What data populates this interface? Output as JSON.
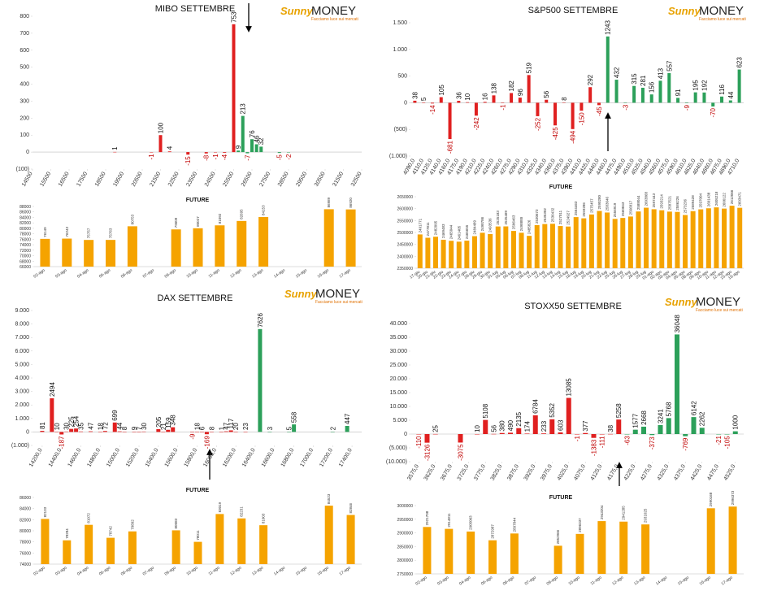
{
  "logo": {
    "brand1": "Sunny",
    "brand2": "MONEY",
    "tagline": "Facciamo luce sui mercati"
  },
  "chart_data": [
    {
      "type": "bar",
      "title": "MIBO SETTEMBRE",
      "x": [
        19000,
        21000,
        21500,
        22000,
        23000,
        24000,
        24500,
        25000,
        25500,
        25750,
        26000,
        26250,
        26500,
        26750,
        27000,
        28000,
        28500
      ],
      "values": [
        1,
        -1,
        100,
        4,
        -15,
        -8,
        -1,
        -4,
        753,
        9,
        213,
        -7,
        76,
        46,
        32,
        -5,
        -2
      ],
      "colors": [
        "#e02020",
        "#e02020",
        "#e02020",
        "#e02020",
        "#e02020",
        "#e02020",
        "#e02020",
        "#e02020",
        "#e02020",
        "#2ca05a",
        "#2ca05a",
        "#2ca05a",
        "#2ca05a",
        "#2ca05a",
        "#2ca05a",
        "#2ca05a",
        "#2ca05a"
      ],
      "xlim": [
        14500,
        32500
      ],
      "xticks": [
        14500,
        15500,
        16500,
        17500,
        18500,
        19500,
        20500,
        21500,
        22500,
        23500,
        24500,
        25500,
        26500,
        27500,
        28500,
        29500,
        30500,
        31500,
        32500
      ],
      "ylim": [
        -100,
        800
      ],
      "yticks": [
        {
          "value": -100,
          "label": "(100)"
        },
        0,
        100,
        200,
        300,
        400,
        500,
        600,
        700,
        800
      ]
    },
    {
      "type": "bar",
      "title": "FUTURE",
      "categories": [
        "02-ago",
        "03-ago",
        "04-ago",
        "05-ago",
        "06-ago",
        "07-ago",
        "09-ago",
        "10-ago",
        "11-ago",
        "12-ago",
        "13-ago",
        "14-ago",
        "15-ago",
        "16-ago",
        "17-ago"
      ],
      "values": [
        76149,
        76243,
        75757,
        75763,
        80753,
        null,
        79609,
        80027,
        81092,
        82695,
        84153,
        null,
        null,
        86989,
        86920
      ],
      "color": "#f5a300",
      "ylim": [
        66000,
        88000
      ],
      "yticks": [
        66000,
        68000,
        70000,
        72000,
        74000,
        76000,
        78000,
        80000,
        82000,
        84000,
        86000,
        88000
      ]
    },
    {
      "type": "bar",
      "title": "S&P500 SETTEMBRE",
      "categories": [
        "4090,0",
        "4110,0",
        "4125,0",
        "4140,0",
        "4160,0",
        "4175,0",
        "4190,0",
        "4210,0",
        "4225,0",
        "4240,0",
        "4260,0",
        "4275,0",
        "4290,0",
        "4310,0",
        "4325,0",
        "4340,0",
        "4360,0",
        "4375,0",
        "4390,0",
        "4410,0",
        "4425,0",
        "4440,0",
        "4460,0",
        "4475,0",
        "4490,0",
        "4510,0",
        "4525,0",
        "4540,0",
        "4560,0",
        "4575,0",
        "4590,0",
        "4610,0",
        "4625,0",
        "4640,0",
        "4660,0",
        "4675,0",
        "4690,0",
        "4710,0"
      ],
      "values": [
        38,
        5,
        -14,
        105,
        -681,
        36,
        10,
        -242,
        16,
        138,
        -1,
        182,
        96,
        519,
        -252,
        56,
        -425,
        8,
        -494,
        -150,
        292,
        -45,
        1243,
        432,
        -3,
        315,
        281,
        156,
        413,
        557,
        91,
        -9,
        195,
        192,
        -70,
        116,
        44,
        623
      ],
      "colors": [
        "#e02020",
        "#e02020",
        "#e02020",
        "#e02020",
        "#e02020",
        "#e02020",
        "#e02020",
        "#e02020",
        "#e02020",
        "#e02020",
        "#e02020",
        "#e02020",
        "#e02020",
        "#e02020",
        "#e02020",
        "#e02020",
        "#e02020",
        "#e02020",
        "#e02020",
        "#e02020",
        "#e02020",
        "#e02020",
        "#2ca05a",
        "#2ca05a",
        "#2ca05a",
        "#2ca05a",
        "#2ca05a",
        "#2ca05a",
        "#2ca05a",
        "#2ca05a",
        "#2ca05a",
        "#2ca05a",
        "#2ca05a",
        "#2ca05a",
        "#2ca05a",
        "#2ca05a",
        "#2ca05a",
        "#2ca05a"
      ],
      "ylim": [
        -1000,
        1500
      ],
      "yticks": [
        {
          "value": -1000,
          "label": "(1.000)"
        },
        {
          "value": -500,
          "label": "(500)"
        },
        0,
        500,
        {
          "value": 1000,
          "label": "1.000"
        },
        {
          "value": 1500,
          "label": "1.500"
        }
      ]
    },
    {
      "type": "bar",
      "title": "FUTURE",
      "categories": [
        "17-giu",
        "20-giu",
        "21-giu",
        "22-giu",
        "23-giu",
        "24-giu",
        "27-giu",
        "28-giu",
        "29-giu",
        "30-giu",
        "01-lug",
        "05-lug",
        "06-lug",
        "07-lug",
        "08-lug",
        "11-lug",
        "12-lug",
        "13-lug",
        "14-lug",
        "15-lug",
        "18-lug",
        "19-lug",
        "20-lug",
        "21-lug",
        "22-lug",
        "25-lug",
        "26-lug",
        "27-lug",
        "28-lug",
        "29-lug",
        "01-ago",
        "02-ago",
        "03-ago",
        "04-ago",
        "05-ago",
        "08-ago",
        "09-ago",
        "10-ago",
        "11-ago",
        "12-ago",
        "15-ago",
        "16-ago"
      ],
      "values": [
        2491771,
        2477811,
        2482095,
        2469483,
        2465044,
        2461405,
        2465655,
        2484489,
        2498786,
        2493536,
        2525183,
        2525489,
        2506463,
        2498800,
        2485826,
        2530673,
        2535302,
        2536432,
        2527011,
        2524927,
        2564463,
        2559286,
        2575457,
        2590280,
        2583646,
        2556919,
        2560843,
        2566817,
        2588044,
        2603868,
        2597443,
        2593214,
        2587521,
        2586226,
        2573236,
        2589428,
        2597004,
        2601438,
        2605218,
        2600122,
        2612066,
        2603471
      ],
      "color": "#f5a300",
      "ylim": [
        2350000,
        2650000
      ],
      "yticks": [
        2350000,
        2400000,
        2450000,
        2500000,
        2550000,
        2600000,
        2650000
      ]
    },
    {
      "type": "bar",
      "title": "DAX SETTEMBRE",
      "x": [
        14200,
        14300,
        14350,
        14400,
        14450,
        14500,
        14550,
        14600,
        14700,
        14800,
        14850,
        14950,
        15000,
        15050,
        15150,
        15200,
        15250,
        15400,
        15450,
        15500,
        15550,
        15750,
        15800,
        15850,
        15900,
        15950,
        16050,
        16100,
        16150,
        16200,
        16300,
        16450,
        16550,
        16750,
        16800,
        17200,
        17350
      ],
      "values": [
        81,
        2494,
        10,
        -187,
        30,
        225,
        254,
        35,
        47,
        18,
        72,
        699,
        44,
        8,
        9,
        7,
        30,
        205,
        21,
        159,
        348,
        -9,
        18,
        6,
        -169,
        8,
        1,
        47,
        117,
        20,
        23,
        7626,
        3,
        5,
        558,
        2,
        447
      ],
      "colors": [
        "#e02020",
        "#e02020",
        "#e02020",
        "#e02020",
        "#e02020",
        "#e02020",
        "#e02020",
        "#e02020",
        "#e02020",
        "#e02020",
        "#e02020",
        "#e02020",
        "#e02020",
        "#e02020",
        "#e02020",
        "#e02020",
        "#e02020",
        "#e02020",
        "#e02020",
        "#e02020",
        "#e02020",
        "#e02020",
        "#e02020",
        "#e02020",
        "#e02020",
        "#e02020",
        "#e02020",
        "#e02020",
        "#e02020",
        "#e02020",
        "#e02020",
        "#2ca05a",
        "#2ca05a",
        "#2ca05a",
        "#2ca05a",
        "#2ca05a",
        "#2ca05a"
      ],
      "xlim": [
        14100,
        17500
      ],
      "xticks": [
        {
          "value": 14200,
          "label": "14200,0"
        },
        {
          "value": 14400,
          "label": "14400,0"
        },
        {
          "value": 14600,
          "label": "14600,0"
        },
        {
          "value": 14800,
          "label": "14800,0"
        },
        {
          "value": 15000,
          "label": "15000,0"
        },
        {
          "value": 15200,
          "label": "15200,0"
        },
        {
          "value": 15400,
          "label": "15400,0"
        },
        {
          "value": 15600,
          "label": "15600,0"
        },
        {
          "value": 15800,
          "label": "15800,0"
        },
        {
          "value": 16000,
          "label": "16000,0"
        },
        {
          "value": 16200,
          "label": "16200,0"
        },
        {
          "value": 16400,
          "label": "16400,0"
        },
        {
          "value": 16600,
          "label": "16600,0"
        },
        {
          "value": 16800,
          "label": "16800,0"
        },
        {
          "value": 17000,
          "label": "17000,0"
        },
        {
          "value": 17200,
          "label": "17200,0"
        },
        {
          "value": 17400,
          "label": "17400,0"
        }
      ],
      "ylim": [
        -1000,
        9000
      ],
      "yticks": [
        {
          "value": -1000,
          "label": "(1.000)"
        },
        0,
        {
          "value": 1000,
          "label": "1.000"
        },
        {
          "value": 2000,
          "label": "2.000"
        },
        {
          "value": 3000,
          "label": "3.000"
        },
        {
          "value": 4000,
          "label": "4.000"
        },
        {
          "value": 5000,
          "label": "5.000"
        },
        {
          "value": 6000,
          "label": "6.000"
        },
        {
          "value": 7000,
          "label": "7.000"
        },
        {
          "value": 8000,
          "label": "8.000"
        },
        {
          "value": 9000,
          "label": "9.000"
        }
      ]
    },
    {
      "type": "bar",
      "title": "FUTURE",
      "categories": [
        "02-ago",
        "03-ago",
        "04-ago",
        "05-ago",
        "06-ago",
        "07-ago",
        "09-ago",
        "10-ago",
        "11-ago",
        "12-ago",
        "13-ago",
        "14-ago",
        "15-ago",
        "16-ago",
        "17-ago"
      ],
      "values": [
        82133,
        78284,
        81072,
        78742,
        79892,
        null,
        80083,
        78011,
        83019,
        82231,
        81003,
        null,
        null,
        84523,
        82846
      ],
      "color": "#f5a300",
      "ylim": [
        74000,
        86000
      ],
      "yticks": [
        74000,
        76000,
        78000,
        80000,
        82000,
        84000,
        86000
      ]
    },
    {
      "type": "bar",
      "title": "STOXX50 SETTEMBRE",
      "x": [
        3575,
        3600,
        3625,
        3700,
        3750,
        3775,
        3800,
        3825,
        3850,
        3875,
        3900,
        3925,
        3950,
        3975,
        4000,
        4025,
        4050,
        4075,
        4100,
        4125,
        4150,
        4175,
        4200,
        4225,
        4250,
        4275,
        4300,
        4325,
        4350,
        4375,
        4400,
        4425,
        4475,
        4500,
        4525
      ],
      "values": [
        -110,
        -3126,
        25,
        -3075,
        10,
        5108,
        56,
        380,
        490,
        2135,
        174,
        6784,
        233,
        5352,
        603,
        13085,
        -1,
        377,
        -1383,
        -111,
        38,
        5258,
        -63,
        1577,
        2668,
        -373,
        3241,
        5768,
        36048,
        -769,
        6142,
        2262,
        -21,
        -105,
        1000
      ],
      "colors": [
        "#e02020",
        "#e02020",
        "#e02020",
        "#e02020",
        "#e02020",
        "#e02020",
        "#e02020",
        "#e02020",
        "#e02020",
        "#e02020",
        "#e02020",
        "#e02020",
        "#e02020",
        "#e02020",
        "#e02020",
        "#e02020",
        "#e02020",
        "#e02020",
        "#e02020",
        "#e02020",
        "#e02020",
        "#e02020",
        "#2ca05a",
        "#2ca05a",
        "#2ca05a",
        "#2ca05a",
        "#2ca05a",
        "#2ca05a",
        "#2ca05a",
        "#2ca05a",
        "#2ca05a",
        "#2ca05a",
        "#2ca05a",
        "#2ca05a",
        "#2ca05a"
      ],
      "xlim": [
        3550,
        4550
      ],
      "xticks": [
        {
          "value": 3575,
          "label": "3575,0"
        },
        {
          "value": 3625,
          "label": "3625,0"
        },
        {
          "value": 3675,
          "label": "3675,0"
        },
        {
          "value": 3725,
          "label": "3725,0"
        },
        {
          "value": 3775,
          "label": "3775,0"
        },
        {
          "value": 3825,
          "label": "3825,0"
        },
        {
          "value": 3875,
          "label": "3875,0"
        },
        {
          "value": 3925,
          "label": "3925,0"
        },
        {
          "value": 3975,
          "label": "3975,0"
        },
        {
          "value": 4025,
          "label": "4025,0"
        },
        {
          "value": 4075,
          "label": "4075,0"
        },
        {
          "value": 4125,
          "label": "4125,0"
        },
        {
          "value": 4175,
          "label": "4175,0"
        },
        {
          "value": 4225,
          "label": "4225,0"
        },
        {
          "value": 4275,
          "label": "4275,0"
        },
        {
          "value": 4325,
          "label": "4325,0"
        },
        {
          "value": 4375,
          "label": "4375,0"
        },
        {
          "value": 4425,
          "label": "4425,0"
        },
        {
          "value": 4475,
          "label": "4475,0"
        },
        {
          "value": 4525,
          "label": "4525,0"
        }
      ],
      "ylim": [
        -10000,
        40000
      ],
      "yticks": [
        {
          "value": -10000,
          "label": "(10.000)"
        },
        {
          "value": -5000,
          "label": "(5.000)"
        },
        0,
        {
          "value": 5000,
          "label": "5.000"
        },
        {
          "value": 10000,
          "label": "10.000"
        },
        {
          "value": 15000,
          "label": "15.000"
        },
        {
          "value": 20000,
          "label": "20.000"
        },
        {
          "value": 25000,
          "label": "25.000"
        },
        {
          "value": 30000,
          "label": "30.000"
        },
        {
          "value": 35000,
          "label": "35.000"
        },
        {
          "value": 40000,
          "label": "40.000"
        }
      ]
    },
    {
      "type": "bar",
      "title": "FUTURE",
      "categories": [
        "02-ago",
        "03-ago",
        "04-ago",
        "05-ago",
        "06-ago",
        "07-ago",
        "09-ago",
        "10-ago",
        "11-ago",
        "12-ago",
        "13-ago",
        "14-ago",
        "15-ago",
        "16-ago",
        "17-ago"
      ],
      "values": [
        2921708,
        2914811,
        2905003,
        2872987,
        2897844,
        null,
        2852966,
        2896337,
        2943204,
        2941285,
        2931025,
        null,
        null,
        2990168,
        2996373
      ],
      "color": "#f5a300",
      "ylim": [
        2750000,
        3000000
      ],
      "yticks": [
        2750000,
        2800000,
        2850000,
        2900000,
        2950000,
        3000000
      ]
    }
  ]
}
